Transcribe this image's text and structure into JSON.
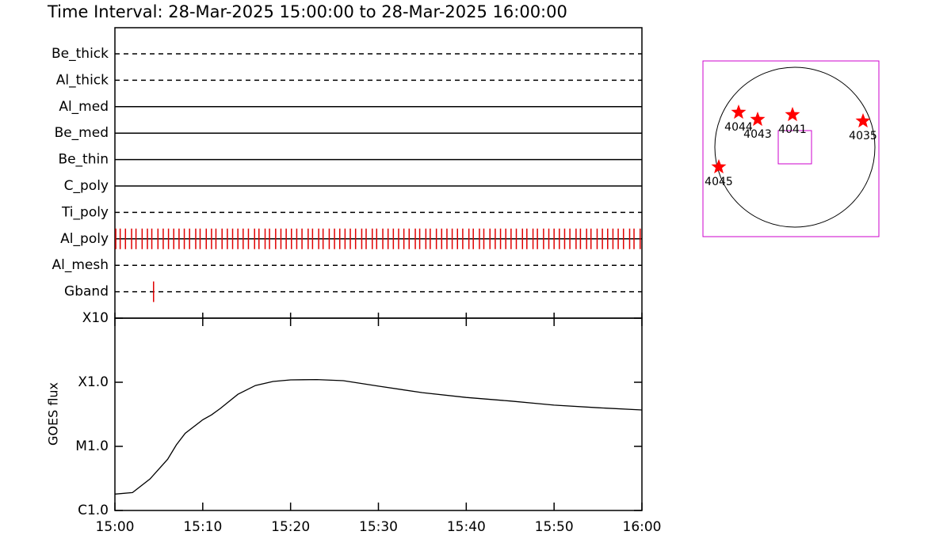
{
  "chart_data": [
    {
      "type": "timeline",
      "title": "Time Interval: 28-Mar-2025 15:00:00 to 28-Mar-2025 16:00:00",
      "categories": [
        "Be_thick",
        "Al_thick",
        "Al_med",
        "Be_med",
        "Be_thin",
        "C_poly",
        "Ti_poly",
        "Al_poly",
        "Al_mesh",
        "Gband"
      ],
      "line_styles": [
        "dashed",
        "dashed",
        "solid",
        "solid",
        "solid",
        "solid",
        "dashed",
        "solid",
        "dashed",
        "dashed"
      ],
      "events": [
        [],
        [],
        [],
        [],
        [],
        [],
        [],
        [
          0.1,
          0.6,
          1.2,
          1.9,
          2.4,
          3.1,
          3.7,
          4.2,
          4.9,
          5.5,
          6.1,
          6.7,
          7.3,
          7.9,
          8.5,
          9.2,
          9.7,
          10.4,
          11.0,
          11.5,
          12.2,
          12.8,
          13.4,
          14.0,
          14.6,
          15.2,
          15.9,
          16.4,
          17.1,
          17.6,
          18.3,
          18.9,
          19.5,
          20.1,
          20.7,
          21.3,
          22.0,
          22.5,
          23.2,
          23.7,
          24.4,
          25.0,
          25.6,
          26.2,
          26.8,
          27.4,
          28.1,
          28.6,
          29.3,
          29.8,
          30.5,
          31.1,
          31.7,
          32.3,
          32.9,
          33.5,
          34.2,
          34.7,
          35.4,
          35.9,
          36.6,
          37.2,
          37.8,
          38.4,
          39.0,
          39.6,
          40.3,
          40.8,
          41.5,
          42.0,
          42.7,
          43.3,
          43.9,
          44.5,
          45.1,
          45.7,
          46.4,
          46.9,
          47.6,
          48.1,
          48.8,
          49.4,
          50.0,
          50.6,
          51.2,
          51.8,
          52.5,
          53.0,
          53.7,
          54.2,
          54.9,
          55.5,
          56.1,
          56.7,
          57.3,
          57.9,
          58.6,
          59.1,
          59.8
        ],
        [],
        [
          4.4
        ]
      ],
      "color": "#e00000",
      "xlim": [
        0,
        60
      ]
    },
    {
      "type": "line",
      "ylabel": "GOES flux",
      "x": [
        0,
        2,
        4,
        6,
        7,
        8,
        10,
        11,
        12,
        14,
        16,
        18,
        20,
        23,
        26,
        30,
        35,
        40,
        45,
        50,
        55,
        60
      ],
      "values": [
        1.8e-06,
        1.9e-06,
        3.1e-06,
        6.3e-06,
        1.06e-05,
        1.6e-05,
        2.6e-05,
        3.1e-05,
        3.9e-05,
        6.5e-05,
        8.9e-05,
        0.000103,
        0.000109,
        0.00011,
        0.000106,
        8.7e-05,
        6.9e-05,
        5.8e-05,
        5.1e-05,
        4.4e-05,
        4e-05,
        3.7e-05
      ],
      "color": "#000000",
      "log_scale": true,
      "xlim": [
        0,
        60
      ],
      "xticks": [
        {
          "value": 0,
          "label": "15:00"
        },
        {
          "value": 10,
          "label": "15:10"
        },
        {
          "value": 20,
          "label": "15:20"
        },
        {
          "value": 30,
          "label": "15:30"
        },
        {
          "value": 40,
          "label": "15:40"
        },
        {
          "value": 50,
          "label": "15:50"
        },
        {
          "value": 60,
          "label": "16:00"
        }
      ],
      "ylim": [
        1e-06,
        0.001
      ],
      "yticks": [
        {
          "value": 1e-06,
          "label": "C1.0"
        },
        {
          "value": 1e-05,
          "label": "M1.0"
        },
        {
          "value": 0.0001,
          "label": "X1.0"
        },
        {
          "value": 0.001,
          "label": "X10"
        }
      ]
    },
    {
      "type": "map",
      "labels": [
        "4044",
        "4043",
        "4041",
        "4035",
        "4045"
      ],
      "color": "#ff0000",
      "box_color": "#cc00cc"
    }
  ]
}
